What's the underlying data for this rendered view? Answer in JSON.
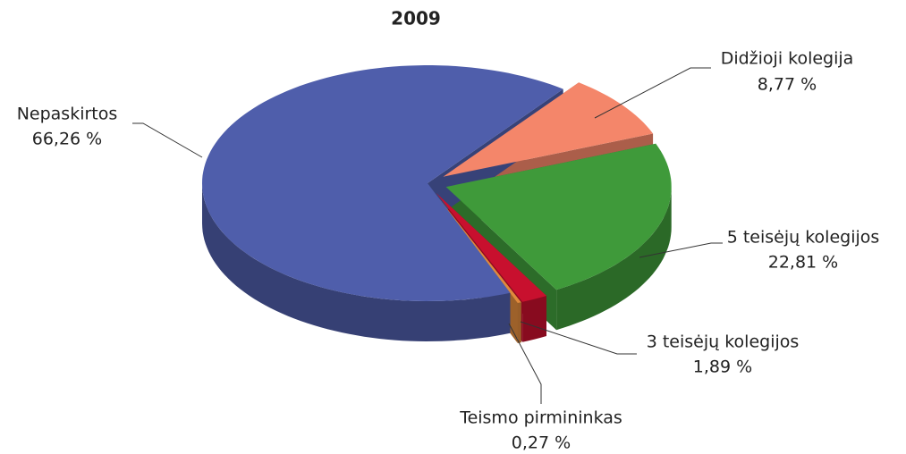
{
  "chart_data": {
    "type": "pie3d",
    "title": "2009",
    "categories": [
      "Didžioji kolegija",
      "5 teisėjų kolegijos",
      "3 teisėjų kolegijos",
      "Teismo pirmininkas",
      "Nepaskirtos"
    ],
    "values": [
      8.77,
      22.81,
      1.89,
      0.27,
      66.26
    ],
    "value_labels": [
      "8,77 %",
      "22,81 %",
      "1,89 %",
      "0,27 %",
      "66,26 %"
    ],
    "colors": [
      "#f4866a",
      "#3f9a3a",
      "#c8102e",
      "#e08a3c",
      "#4f5eab"
    ]
  }
}
